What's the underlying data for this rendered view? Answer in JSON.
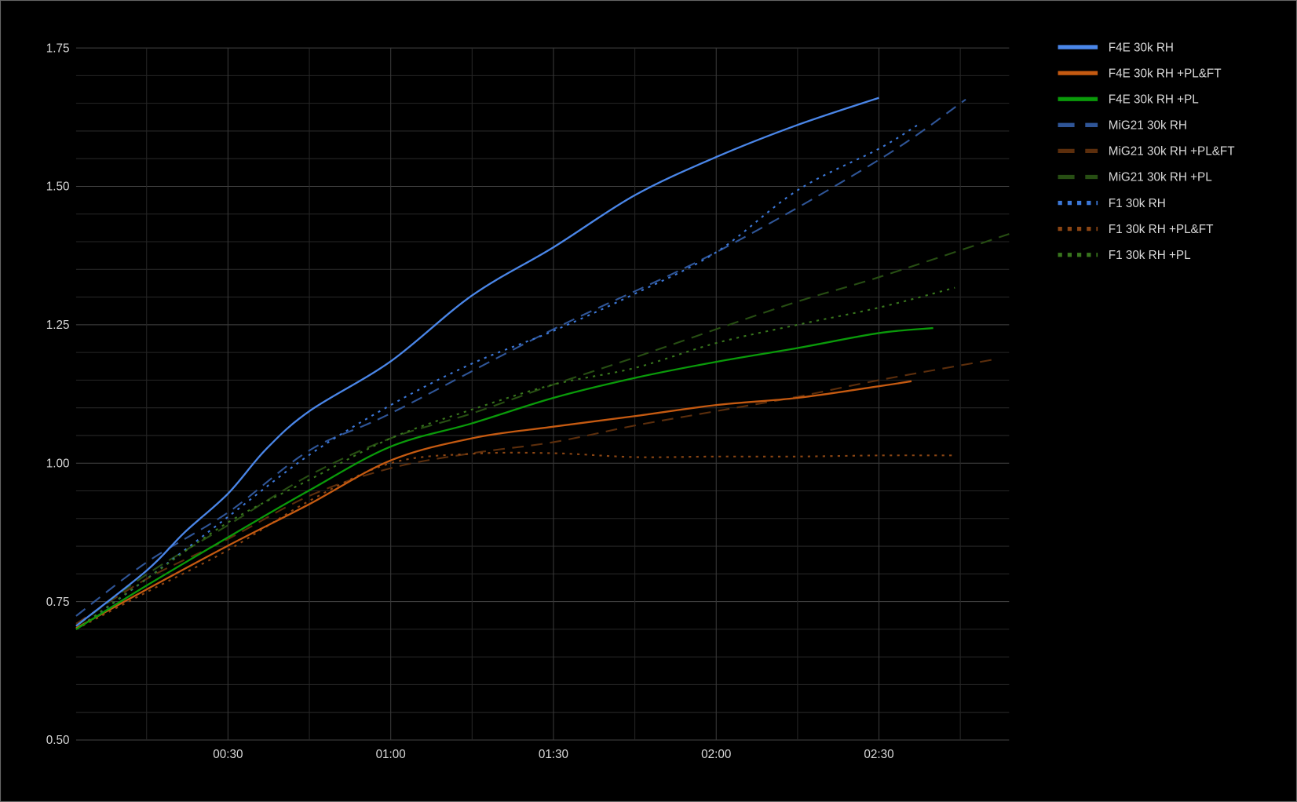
{
  "chart_data": {
    "type": "line",
    "title": "",
    "xlabel": "",
    "ylabel": "",
    "x_format": "mm:ss",
    "xlim": [
      "00:02",
      "02:54"
    ],
    "ylim": [
      0.5,
      1.75
    ],
    "grid": true,
    "legend_position": "right",
    "x_ticks": [
      "00:30",
      "01:00",
      "01:30",
      "02:00",
      "02:30"
    ],
    "y_ticks": [
      "0.50",
      "0.75",
      "1.00",
      "1.25",
      "1.50",
      "1.75"
    ],
    "series": [
      {
        "name": "F4E 30k RH",
        "color": "#4a86e8",
        "style": "solid",
        "points": [
          [
            "00:02",
            0.706
          ],
          [
            "00:15",
            0.806
          ],
          [
            "00:22",
            0.875
          ],
          [
            "00:30",
            0.945
          ],
          [
            "00:37",
            1.025
          ],
          [
            "00:45",
            1.094
          ],
          [
            "01:00",
            1.184
          ],
          [
            "01:15",
            1.303
          ],
          [
            "01:30",
            1.39
          ],
          [
            "01:45",
            1.484
          ],
          [
            "02:00",
            1.553
          ],
          [
            "02:15",
            1.611
          ],
          [
            "02:30",
            1.66
          ]
        ]
      },
      {
        "name": "F4E 30k RH +PL&FT",
        "color": "#c55a11",
        "style": "solid",
        "points": [
          [
            "00:02",
            0.702
          ],
          [
            "00:15",
            0.772
          ],
          [
            "00:30",
            0.851
          ],
          [
            "00:45",
            0.926
          ],
          [
            "01:00",
            1.005
          ],
          [
            "01:15",
            1.045
          ],
          [
            "01:30",
            1.066
          ],
          [
            "01:45",
            1.085
          ],
          [
            "02:00",
            1.105
          ],
          [
            "02:15",
            1.118
          ],
          [
            "02:30",
            1.139
          ],
          [
            "02:36",
            1.148
          ]
        ]
      },
      {
        "name": "F4E 30k RH +PL",
        "color": "#0a9a0a",
        "style": "solid",
        "points": [
          [
            "00:02",
            0.7
          ],
          [
            "00:15",
            0.779
          ],
          [
            "00:30",
            0.866
          ],
          [
            "00:45",
            0.951
          ],
          [
            "01:00",
            1.03
          ],
          [
            "01:15",
            1.072
          ],
          [
            "01:30",
            1.118
          ],
          [
            "01:45",
            1.154
          ],
          [
            "02:00",
            1.183
          ],
          [
            "02:15",
            1.208
          ],
          [
            "02:30",
            1.235
          ],
          [
            "02:40",
            1.244
          ]
        ]
      },
      {
        "name": "MiG21 30k RH",
        "color": "#2f5597",
        "style": "dashed",
        "points": [
          [
            "00:02",
            0.724
          ],
          [
            "00:15",
            0.821
          ],
          [
            "00:30",
            0.911
          ],
          [
            "00:45",
            1.023
          ],
          [
            "01:00",
            1.09
          ],
          [
            "01:30",
            1.242
          ],
          [
            "02:00",
            1.381
          ],
          [
            "02:30",
            1.548
          ],
          [
            "02:46",
            1.657
          ]
        ]
      },
      {
        "name": "MiG21 30k RH +PL&FT",
        "color": "#5c2e0c",
        "style": "dashed",
        "points": [
          [
            "00:02",
            0.71
          ],
          [
            "00:15",
            0.791
          ],
          [
            "00:30",
            0.863
          ],
          [
            "00:45",
            0.941
          ],
          [
            "01:00",
            0.991
          ],
          [
            "01:15",
            1.018
          ],
          [
            "01:30",
            1.038
          ],
          [
            "01:45",
            1.068
          ],
          [
            "02:00",
            1.094
          ],
          [
            "02:15",
            1.12
          ],
          [
            "02:30",
            1.15
          ],
          [
            "02:51",
            1.187
          ]
        ]
      },
      {
        "name": "MiG21 30k RH +PL",
        "color": "#274e13",
        "style": "dashed",
        "points": [
          [
            "00:02",
            0.705
          ],
          [
            "00:15",
            0.799
          ],
          [
            "00:30",
            0.888
          ],
          [
            "00:45",
            0.978
          ],
          [
            "01:00",
            1.045
          ],
          [
            "01:15",
            1.09
          ],
          [
            "01:30",
            1.142
          ],
          [
            "01:45",
            1.191
          ],
          [
            "02:00",
            1.242
          ],
          [
            "02:15",
            1.292
          ],
          [
            "02:30",
            1.336
          ],
          [
            "02:54",
            1.414
          ]
        ]
      },
      {
        "name": "F1 30k RH",
        "color": "#3c78d8",
        "style": "dotted",
        "points": [
          [
            "00:02",
            0.7
          ],
          [
            "00:15",
            0.791
          ],
          [
            "00:30",
            0.903
          ],
          [
            "00:45",
            1.015
          ],
          [
            "01:00",
            1.105
          ],
          [
            "01:15",
            1.18
          ],
          [
            "01:30",
            1.239
          ],
          [
            "01:45",
            1.306
          ],
          [
            "02:00",
            1.381
          ],
          [
            "02:15",
            1.493
          ],
          [
            "02:30",
            1.568
          ],
          [
            "02:37",
            1.61
          ]
        ]
      },
      {
        "name": "F1 30k RH +PL&FT",
        "color": "#8b4513",
        "style": "dotted",
        "points": [
          [
            "00:02",
            0.7
          ],
          [
            "00:15",
            0.767
          ],
          [
            "00:30",
            0.843
          ],
          [
            "00:45",
            0.932
          ],
          [
            "01:00",
            1.0
          ],
          [
            "01:15",
            1.017
          ],
          [
            "01:30",
            1.018
          ],
          [
            "01:45",
            1.011
          ],
          [
            "02:00",
            1.012
          ],
          [
            "02:15",
            1.012
          ],
          [
            "02:30",
            1.014
          ],
          [
            "02:44",
            1.014
          ]
        ]
      },
      {
        "name": "F1 30k RH +PL",
        "color": "#38761d",
        "style": "dotted",
        "points": [
          [
            "00:02",
            0.7
          ],
          [
            "00:15",
            0.791
          ],
          [
            "00:30",
            0.893
          ],
          [
            "00:45",
            0.97
          ],
          [
            "01:00",
            1.045
          ],
          [
            "01:15",
            1.097
          ],
          [
            "01:30",
            1.142
          ],
          [
            "01:45",
            1.172
          ],
          [
            "02:00",
            1.217
          ],
          [
            "02:15",
            1.25
          ],
          [
            "02:30",
            1.281
          ],
          [
            "02:44",
            1.317
          ]
        ]
      }
    ]
  }
}
